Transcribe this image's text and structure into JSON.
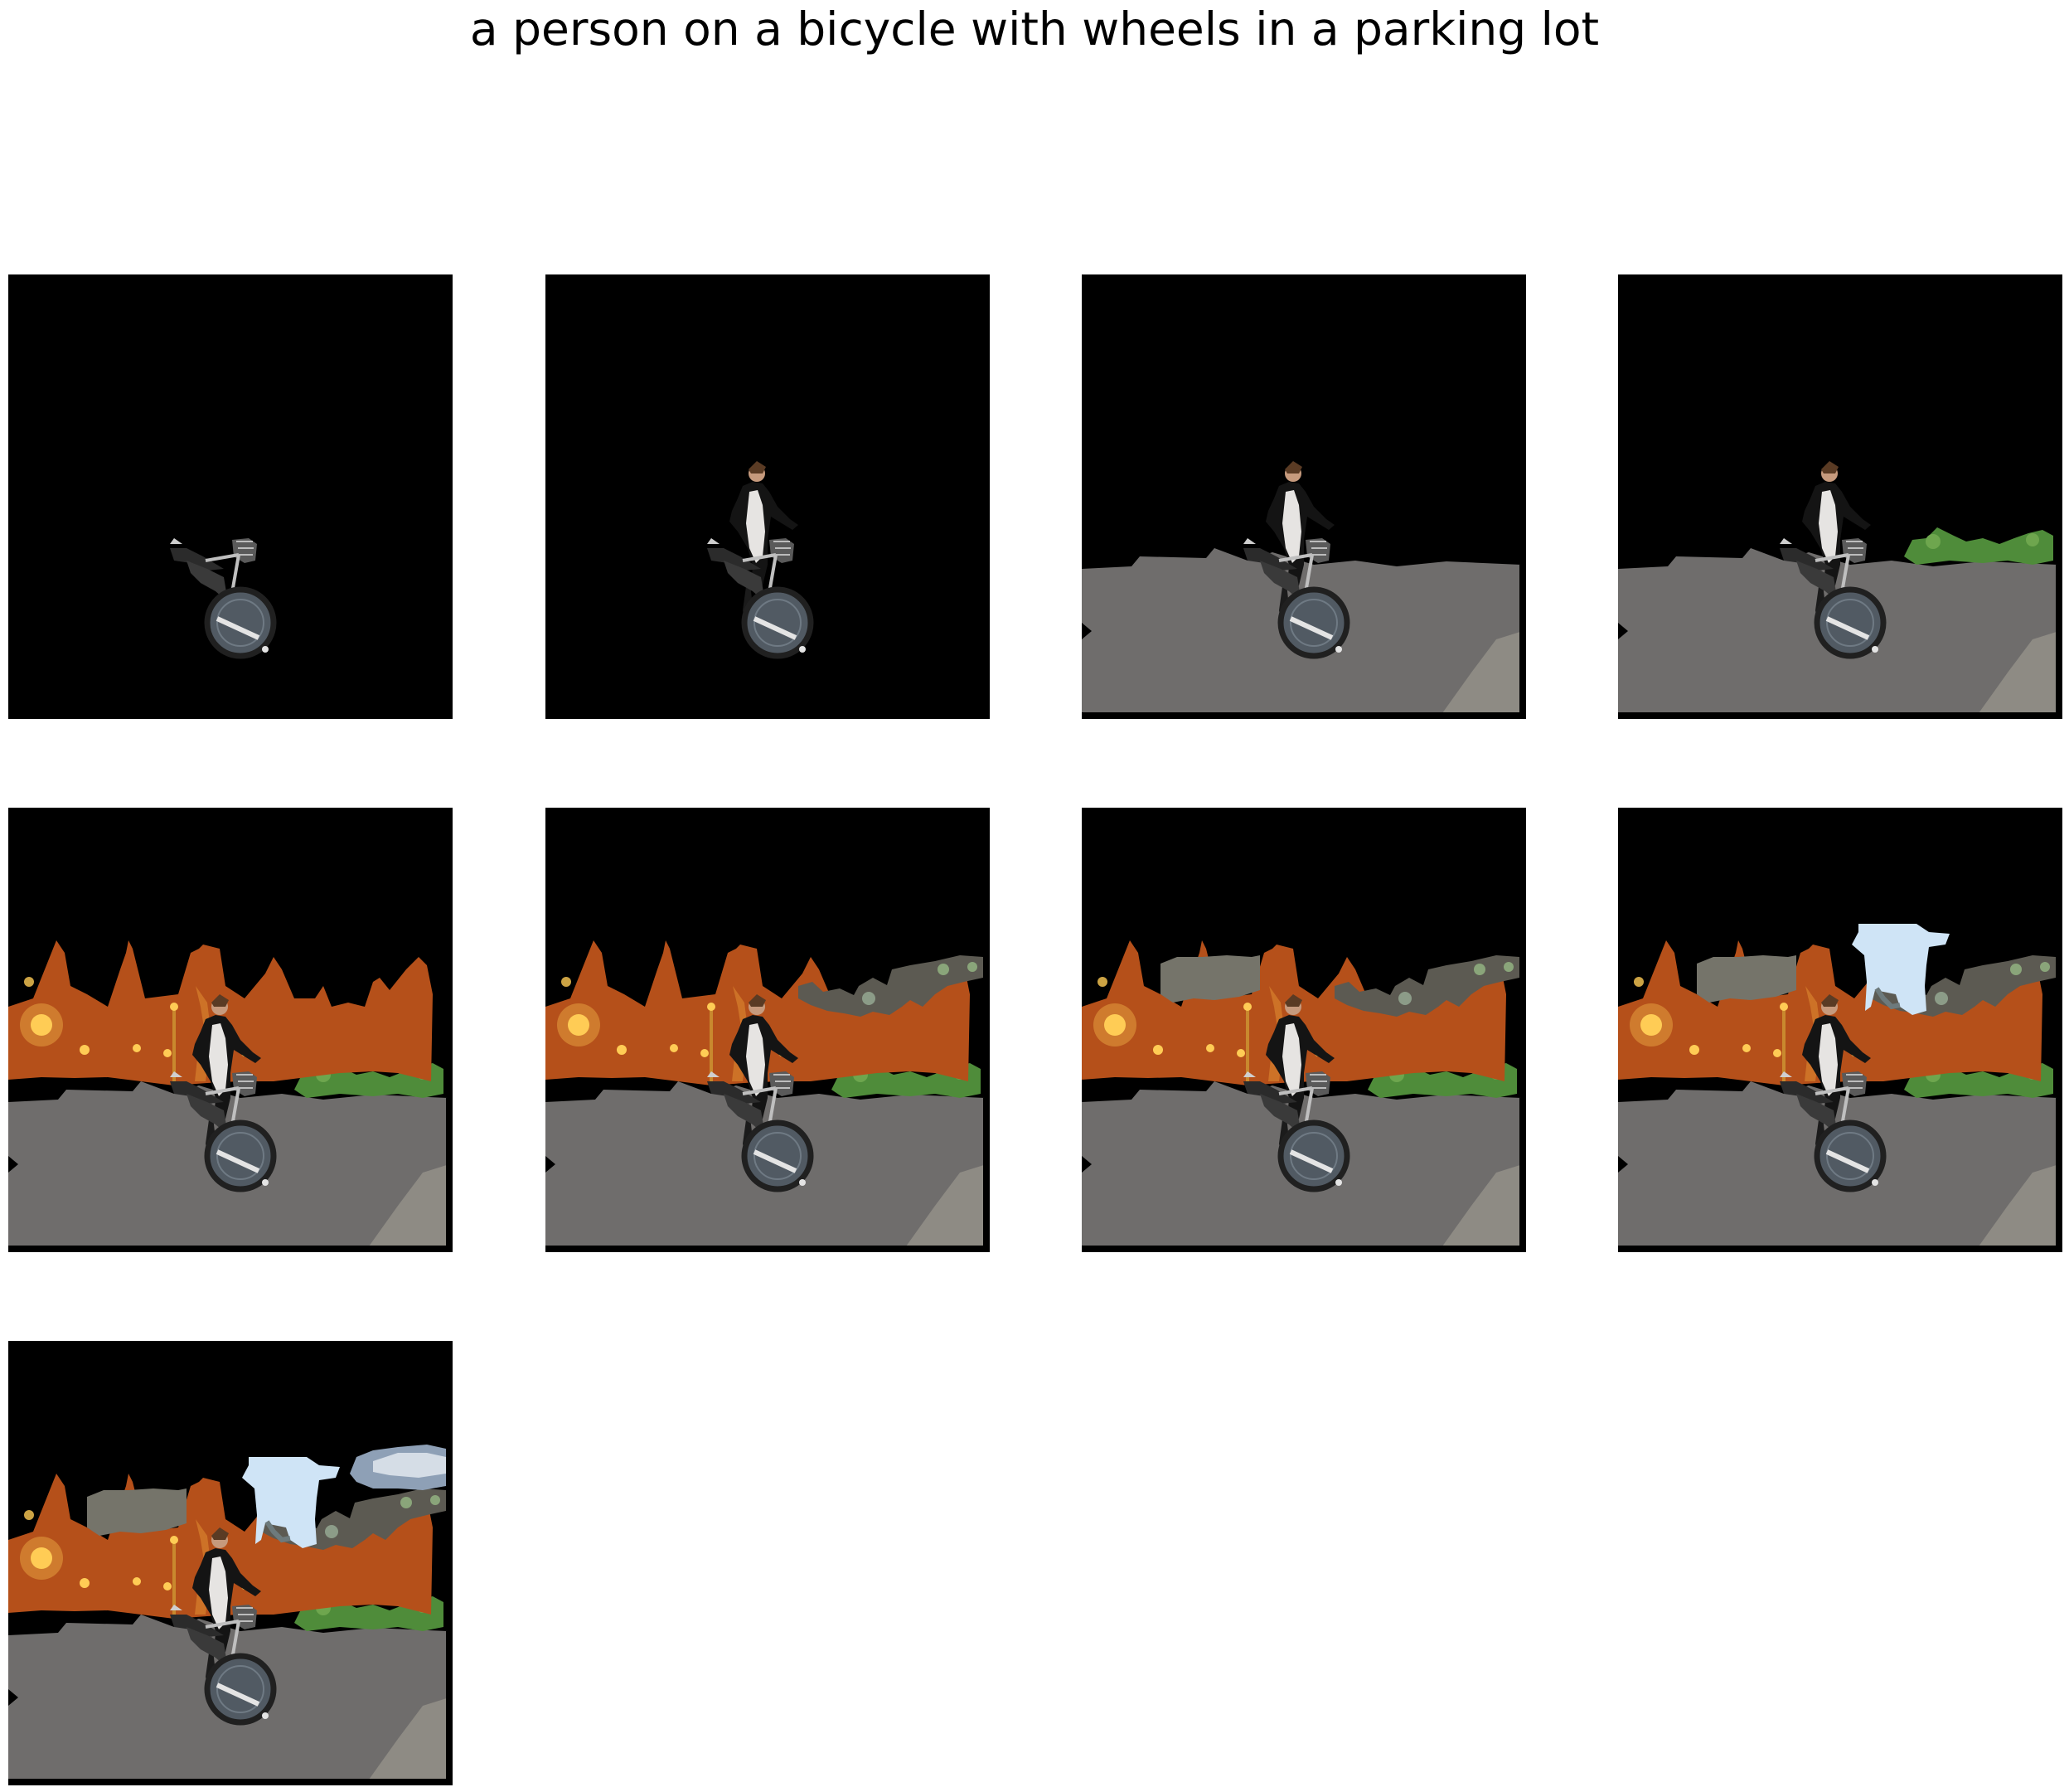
{
  "title": "a person on a bicycle with wheels in a parking lot",
  "colors": {
    "background": "#000000",
    "road": "#6f6d6c",
    "curb": "#8e8b84",
    "orange_trees": "#b5501a",
    "street_light": "#ffcc55",
    "bushes": "#4f8c3a",
    "gray_foliage": "#5c5a52",
    "sky": "#cfe4f6",
    "cloud": "#8ea0b6"
  },
  "panels": [
    {
      "layers": [
        "bicycle"
      ]
    },
    {
      "layers": [
        "bicycle",
        "person"
      ]
    },
    {
      "layers": [
        "bicycle",
        "person",
        "road"
      ]
    },
    {
      "layers": [
        "bicycle",
        "person",
        "road",
        "bushes_right"
      ]
    },
    {
      "layers": [
        "bicycle",
        "person",
        "road",
        "bushes_right",
        "trees_lights"
      ]
    },
    {
      "layers": [
        "bicycle",
        "person",
        "road",
        "bushes_right",
        "trees_lights",
        "foliage_right"
      ]
    },
    {
      "layers": [
        "bicycle",
        "person",
        "road",
        "bushes_right",
        "trees_lights",
        "foliage_right",
        "foliage_left"
      ]
    },
    {
      "layers": [
        "bicycle",
        "person",
        "road",
        "bushes_right",
        "trees_lights",
        "foliage_right",
        "foliage_left",
        "sky_patch"
      ]
    },
    {
      "layers": [
        "bicycle",
        "person",
        "road",
        "bushes_right",
        "trees_lights",
        "foliage_right",
        "foliage_left",
        "sky_patch",
        "cloud_patch"
      ]
    }
  ]
}
